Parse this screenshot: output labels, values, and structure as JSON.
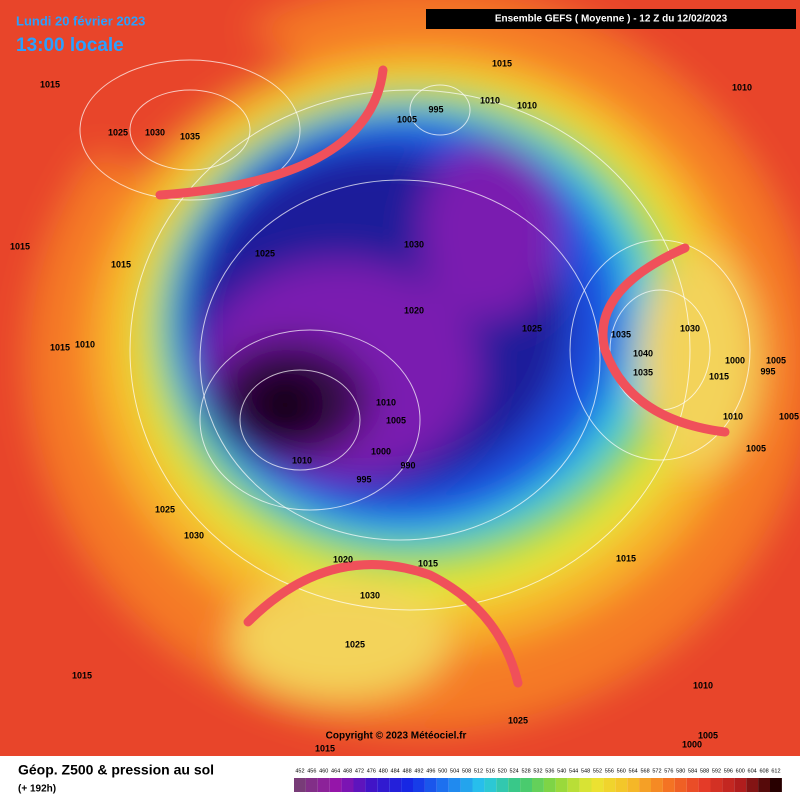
{
  "header": {
    "date": "Lundi 20 février 2023",
    "time": "13:00 locale",
    "model": "Ensemble GEFS  ( Moyenne )  - 12 Z du 12/02/2023"
  },
  "map": {
    "copyright": "Copyright © 2023 Météociel.fr",
    "pressure_labels": [
      1015,
      1025,
      1030,
      1035,
      1015,
      995,
      1005,
      1010,
      1010,
      1010,
      1015,
      1025,
      1030,
      1020,
      1025,
      1035,
      1030,
      1040,
      1035,
      1000,
      1005,
      995,
      1015,
      1010,
      1005,
      1005,
      1015,
      1010,
      1010,
      1005,
      1000,
      990,
      995,
      1010,
      1025,
      1030,
      1015,
      1015,
      1030,
      1025,
      1015,
      1010,
      1025,
      1005,
      1000,
      1015,
      1015,
      1020
    ]
  },
  "footer": {
    "title": "Géop. Z500 & pression au sol",
    "lead": "(+ 192h)",
    "scale": [
      452,
      456,
      460,
      464,
      468,
      472,
      476,
      480,
      484,
      488,
      492,
      496,
      500,
      504,
      508,
      512,
      516,
      520,
      524,
      528,
      532,
      536,
      540,
      544,
      548,
      552,
      556,
      560,
      564,
      568,
      572,
      576,
      580,
      584,
      588,
      592,
      596,
      600,
      604,
      608,
      612
    ]
  }
}
